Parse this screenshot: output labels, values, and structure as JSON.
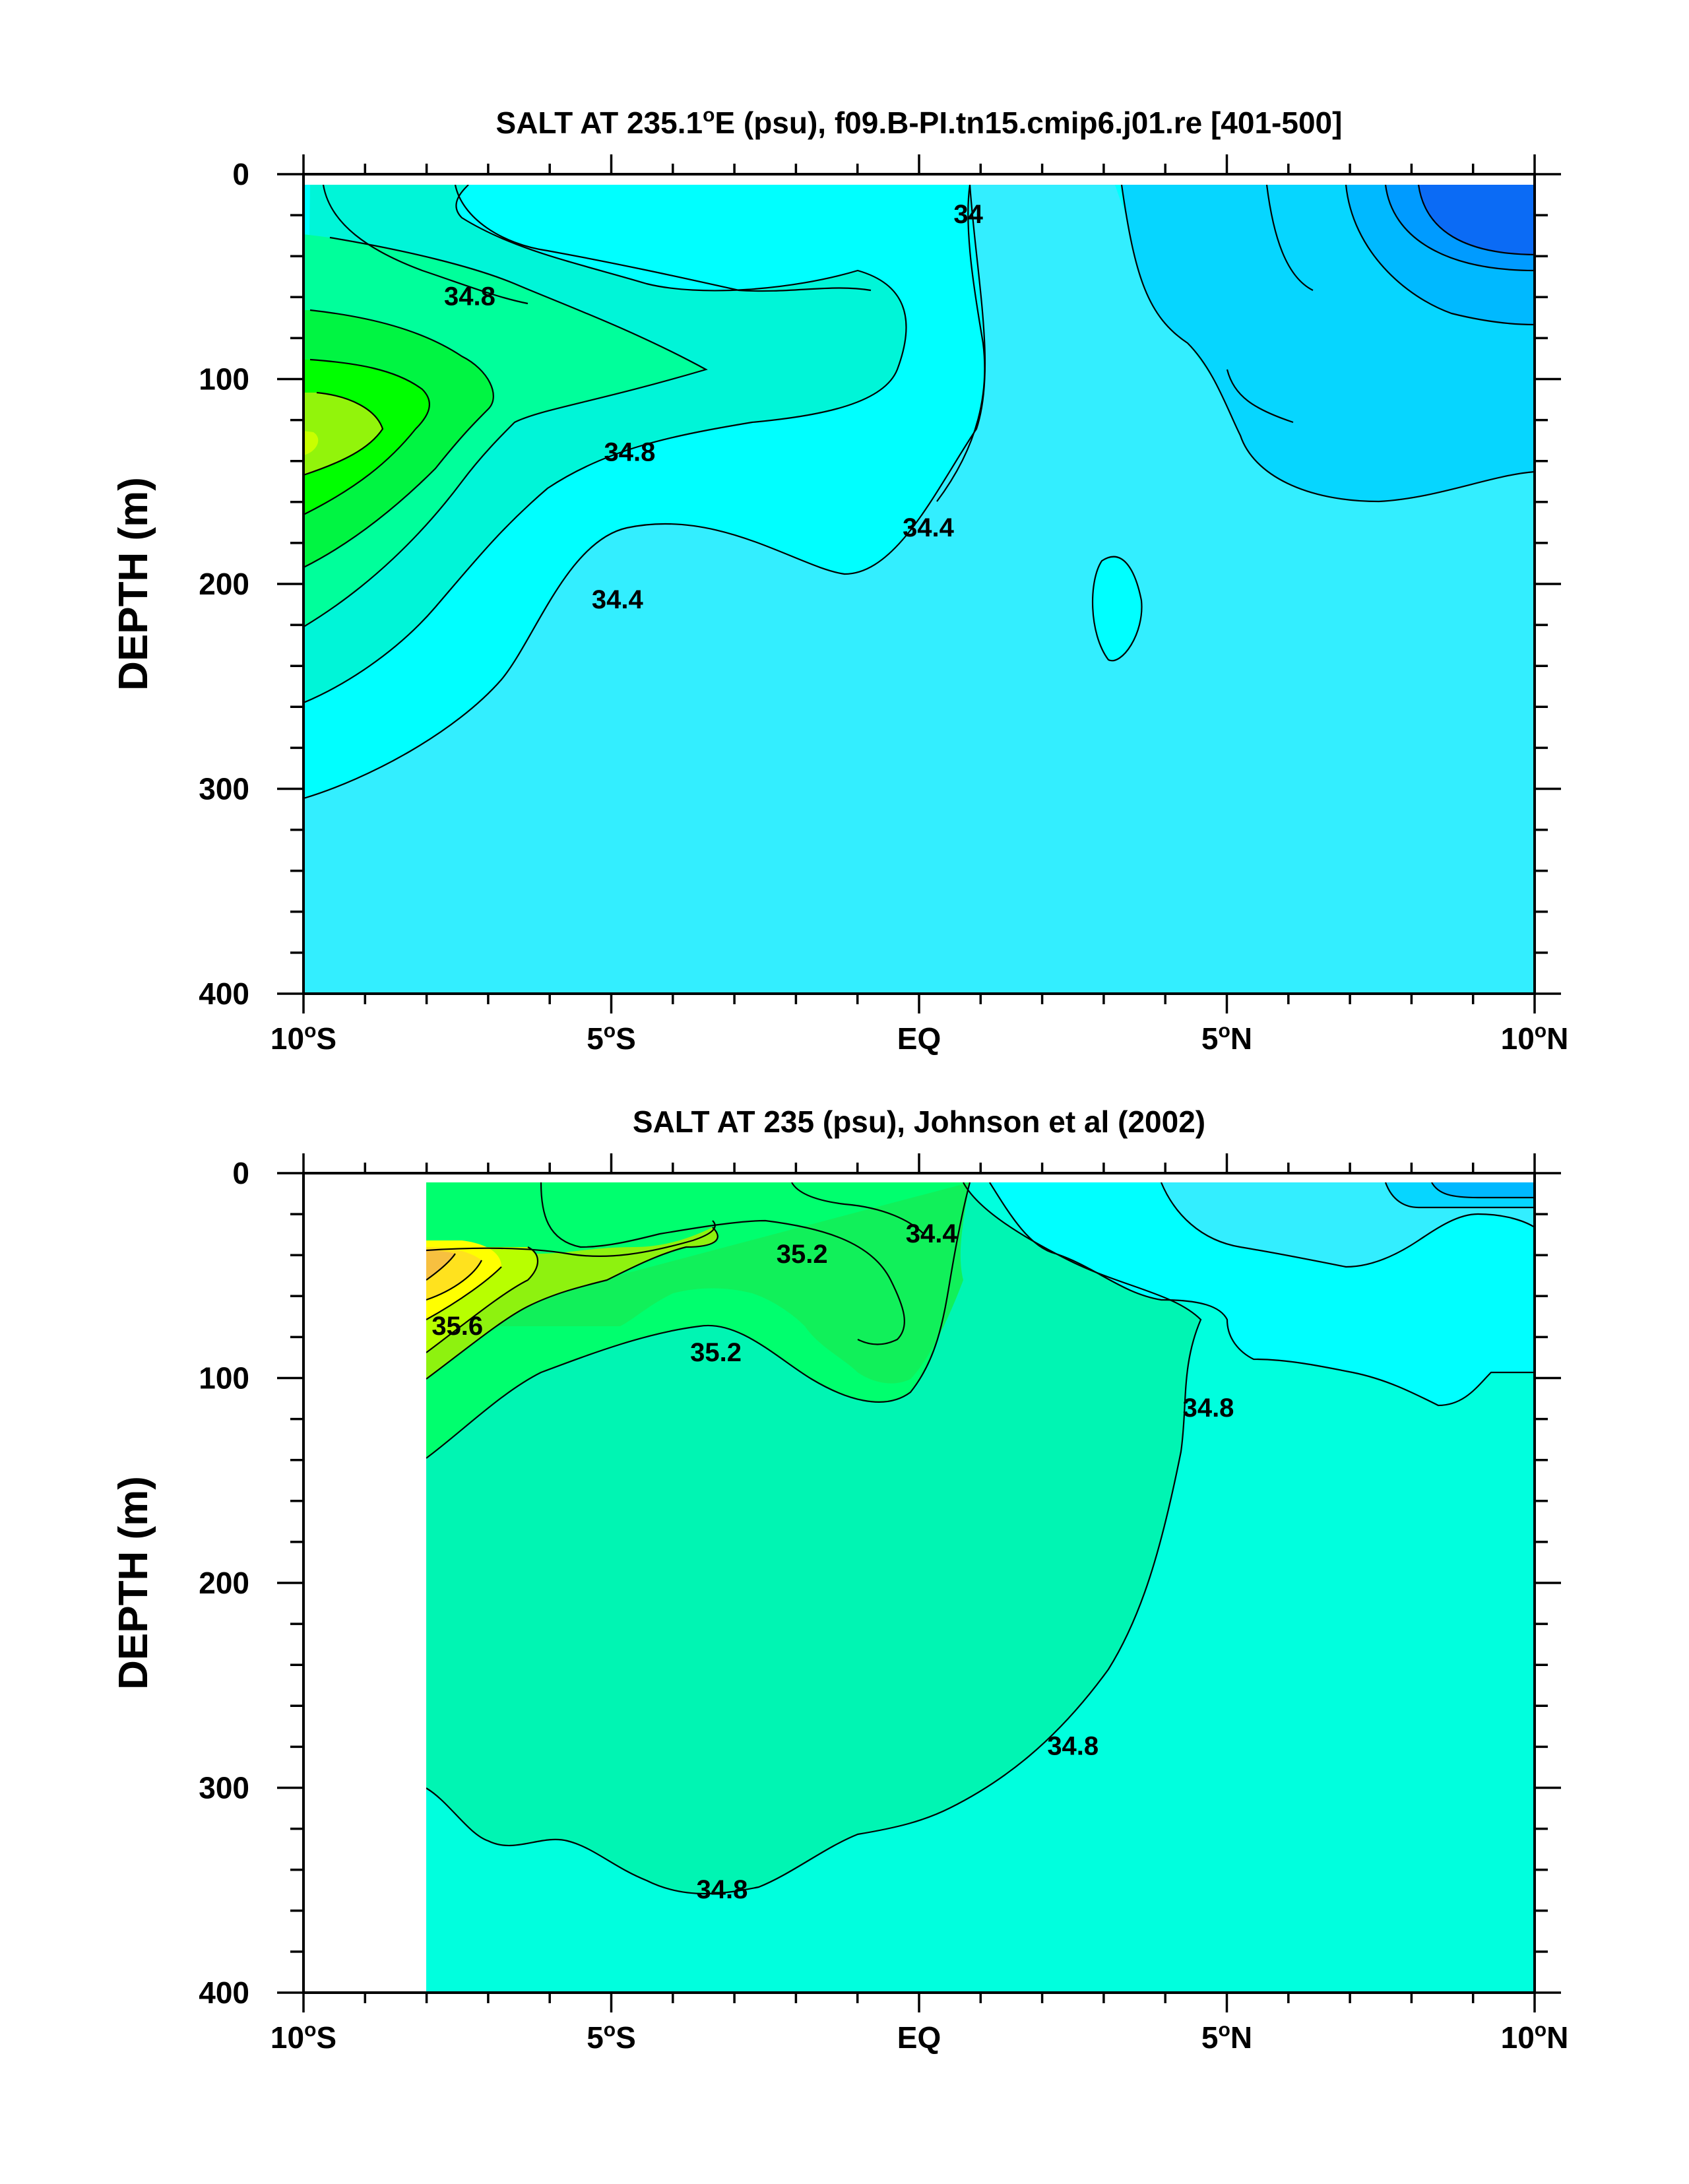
{
  "chart_data": [
    {
      "type": "contour",
      "title": "SALT AT 235.1°E (psu), f09.B-PI.tn15.cmip6.j01.re [401-500]",
      "title_parts": {
        "pre": "SALT AT 235.1",
        "deg": "o",
        "post": "E (psu), f09.B-PI.tn15.cmip6.j01.re [401-500]"
      },
      "ylabel": "DEPTH (m)",
      "xlim": [
        -10,
        10
      ],
      "ylim": [
        0,
        400
      ],
      "y_inverted": true,
      "x_ticks": [
        -10,
        -5,
        0,
        5,
        10
      ],
      "x_tick_labels": [
        {
          "x": -10,
          "pre": "10",
          "deg": "o",
          "post": "S"
        },
        {
          "x": -5,
          "pre": "5",
          "deg": "o",
          "post": "S"
        },
        {
          "x": 0,
          "pre": "EQ",
          "deg": "",
          "post": ""
        },
        {
          "x": 5,
          "pre": "5",
          "deg": "o",
          "post": "N"
        },
        {
          "x": 10,
          "pre": "10",
          "deg": "o",
          "post": "N"
        }
      ],
      "y_ticks": [
        0,
        100,
        200,
        300,
        400
      ],
      "y_tick_labels": [
        "0",
        "100",
        "200",
        "300",
        "400"
      ],
      "contour_labels": [
        {
          "text": "34.8",
          "x": -7.3,
          "y": 60
        },
        {
          "text": "34.8",
          "x": -4.7,
          "y": 136
        },
        {
          "text": "34.4",
          "x": -4.9,
          "y": 208
        },
        {
          "text": "34.4",
          "x": 0.15,
          "y": 173
        },
        {
          "text": "34",
          "x": 0.8,
          "y": 20
        }
      ]
    },
    {
      "type": "contour",
      "title": "SALT AT 235 (psu), Johnson et al (2002)",
      "title_parts": {
        "pre": "SALT AT 235 (psu), Johnson et al (2002)",
        "deg": "",
        "post": ""
      },
      "ylabel": "DEPTH (m)",
      "xlim": [
        -10,
        10
      ],
      "ylim": [
        0,
        400
      ],
      "y_inverted": true,
      "data_xlim": [
        -8,
        10
      ],
      "x_ticks": [
        -10,
        -5,
        0,
        5,
        10
      ],
      "x_tick_labels": [
        {
          "x": -10,
          "pre": "10",
          "deg": "o",
          "post": "S"
        },
        {
          "x": -5,
          "pre": "5",
          "deg": "o",
          "post": "S"
        },
        {
          "x": 0,
          "pre": "EQ",
          "deg": "",
          "post": ""
        },
        {
          "x": 5,
          "pre": "5",
          "deg": "o",
          "post": "N"
        },
        {
          "x": 10,
          "pre": "10",
          "deg": "o",
          "post": "N"
        }
      ],
      "y_ticks": [
        0,
        100,
        200,
        300,
        400
      ],
      "y_tick_labels": [
        "0",
        "100",
        "200",
        "300",
        "400"
      ],
      "contour_labels": [
        {
          "text": "35.2",
          "x": -1.9,
          "y": 40
        },
        {
          "text": "35.6",
          "x": -7.5,
          "y": 75
        },
        {
          "text": "35.2",
          "x": -3.3,
          "y": 88
        },
        {
          "text": "34.8",
          "x": 4.7,
          "y": 115
        },
        {
          "text": "34.8",
          "x": 2.5,
          "y": 280
        },
        {
          "text": "34.8",
          "x": -3.2,
          "y": 350
        },
        {
          "text": "34.4",
          "x": 0.2,
          "y": 30
        }
      ]
    }
  ]
}
